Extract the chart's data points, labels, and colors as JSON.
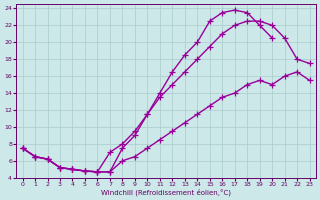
{
  "title": "",
  "xlabel": "Windchill (Refroidissement éolien,°C)",
  "ylabel": "",
  "bg_color": "#cce8e8",
  "grid_color": "#aacccc",
  "line_color": "#990099",
  "xlim": [
    -0.5,
    23.5
  ],
  "ylim": [
    4,
    24.5
  ],
  "xticks": [
    0,
    1,
    2,
    3,
    4,
    5,
    6,
    7,
    8,
    9,
    10,
    11,
    12,
    13,
    14,
    15,
    16,
    17,
    18,
    19,
    20,
    21,
    22,
    23
  ],
  "yticks": [
    4,
    6,
    8,
    10,
    12,
    14,
    16,
    18,
    20,
    22,
    24
  ],
  "marker": "+",
  "markersize": 4,
  "linewidth": 1.0,
  "line1_x": [
    0,
    1,
    2,
    3,
    4,
    5,
    6,
    7,
    8,
    9,
    10,
    11,
    12,
    13,
    14,
    15,
    16,
    17,
    18,
    19,
    20
  ],
  "line1_y": [
    7.5,
    6.5,
    6.2,
    5.2,
    5.0,
    4.8,
    4.7,
    4.7,
    7.5,
    9.0,
    11.5,
    14.0,
    16.5,
    18.5,
    20.0,
    22.5,
    23.5,
    23.8,
    23.5,
    22.0,
    20.5
  ],
  "line2_x": [
    0,
    1,
    2,
    3,
    4,
    5,
    6,
    7,
    8,
    9,
    10,
    11,
    12,
    13,
    14,
    15,
    16,
    17,
    18,
    19,
    20,
    21,
    22,
    23
  ],
  "line2_y": [
    7.5,
    6.5,
    6.2,
    5.2,
    5.0,
    4.8,
    4.7,
    7.0,
    8.0,
    9.5,
    11.5,
    13.5,
    15.0,
    16.5,
    18.0,
    19.5,
    21.0,
    22.0,
    22.5,
    22.5,
    22.0,
    20.5,
    18.0,
    17.5
  ],
  "line3_x": [
    0,
    1,
    2,
    3,
    4,
    5,
    6,
    7,
    8,
    9,
    10,
    11,
    12,
    13,
    14,
    15,
    16,
    17,
    18,
    19,
    20,
    21,
    22,
    23
  ],
  "line3_y": [
    7.5,
    6.5,
    6.2,
    5.2,
    5.0,
    4.8,
    4.7,
    4.7,
    6.0,
    6.5,
    7.5,
    8.5,
    9.5,
    10.5,
    11.5,
    12.5,
    13.5,
    14.0,
    15.0,
    15.5,
    15.0,
    16.0,
    16.5,
    15.5
  ]
}
